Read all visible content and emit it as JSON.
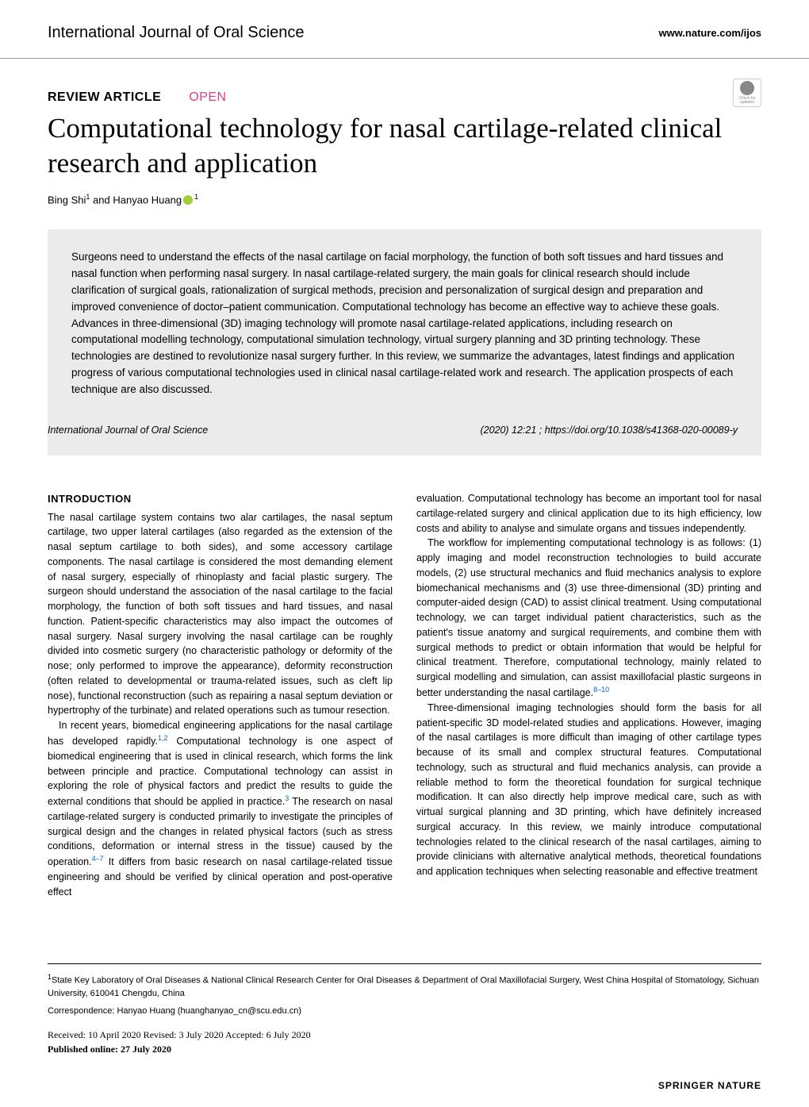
{
  "header": {
    "journal": "International Journal of Oral Science",
    "website": "www.nature.com/ijos"
  },
  "article": {
    "type": "REVIEW ARTICLE",
    "open": "OPEN",
    "title": "Computational technology for nasal cartilage-related clinical research and application",
    "authors": "Bing Shi",
    "authors_rest": " and Hanyao Huang",
    "sup1": "1",
    "sup2": "1"
  },
  "check_updates": {
    "line1": "Check for",
    "line2": "updates"
  },
  "abstract": "Surgeons need to understand the effects of the nasal cartilage on facial morphology, the function of both soft tissues and hard tissues and nasal function when performing nasal surgery. In nasal cartilage-related surgery, the main goals for clinical research should include clarification of surgical goals, rationalization of surgical methods, precision and personalization of surgical design and preparation and improved convenience of doctor–patient communication. Computational technology has become an effective way to achieve these goals. Advances in three-dimensional (3D) imaging technology will promote nasal cartilage-related applications, including research on computational modelling technology, computational simulation technology, virtual surgery planning and 3D printing technology. These technologies are destined to revolutionize nasal surgery further. In this review, we summarize the advantages, latest findings and application progress of various computational technologies used in clinical nasal cartilage-related work and research. The application prospects of each technique are also discussed.",
  "citation": {
    "journal": "International Journal of Oral Science",
    "info": "(2020) 12:21 ; https://doi.org/10.1038/s41368-020-00089-y"
  },
  "sections": {
    "intro_heading": "INTRODUCTION",
    "col1_p1": "The nasal cartilage system contains two alar cartilages, the nasal septum cartilage, two upper lateral cartilages (also regarded as the extension of the nasal septum cartilage to both sides), and some accessory cartilage components. The nasal cartilage is considered the most demanding element of nasal surgery, especially of rhinoplasty and facial plastic surgery. The surgeon should understand the association of the nasal cartilage to the facial morphology, the function of both soft tissues and hard tissues, and nasal function. Patient-specific characteristics may also impact the outcomes of nasal surgery. Nasal surgery involving the nasal cartilage can be roughly divided into cosmetic surgery (no characteristic pathology or deformity of the nose; only performed to improve the appearance), deformity reconstruction (often related to developmental or trauma-related issues, such as cleft lip nose), functional reconstruction (such as repairing a nasal septum deviation or hypertrophy of the turbinate) and related operations such as tumour resection.",
    "col1_p2a": "In recent years, biomedical engineering applications for the nasal cartilage has developed rapidly.",
    "col1_p2_ref1": "1,2",
    "col1_p2b": " Computational technology is one aspect of biomedical engineering that is used in clinical research, which forms the link between principle and practice. Computational technology can assist in exploring the role of physical factors and predict the results to guide the external conditions that should be applied in practice.",
    "col1_p2_ref2": "3",
    "col1_p2c": " The research on nasal cartilage-related surgery is conducted primarily to investigate the principles of surgical design and the changes in related physical factors (such as stress conditions, deformation or internal stress in the tissue) caused by the operation.",
    "col1_p2_ref3": "4–7",
    "col1_p2d": " It differs from basic research on nasal cartilage-related tissue engineering and should be verified by clinical operation and post-operative effect",
    "col2_p1": "evaluation. Computational technology has become an important tool for nasal cartilage-related surgery and clinical application due to its high efficiency, low costs and ability to analyse and simulate organs and tissues independently.",
    "col2_p2a": "The workflow for implementing computational technology is as follows: (1) apply imaging and model reconstruction technologies to build accurate models, (2) use structural mechanics and fluid mechanics analysis to explore biomechanical mechanisms and (3) use three-dimensional (3D) printing and computer-aided design (CAD) to assist clinical treatment. Using computational technology, we can target individual patient characteristics, such as the patient's tissue anatomy and surgical requirements, and combine them with surgical methods to predict or obtain information that would be helpful for clinical treatment. Therefore, computational technology, mainly related to surgical modelling and simulation, can assist maxillofacial plastic surgeons in better understanding the nasal cartilage.",
    "col2_p2_ref1": "8–10",
    "col2_p3": "Three-dimensional imaging technologies should form the basis for all patient-specific 3D model-related studies and applications. However, imaging of the nasal cartilages is more difficult than imaging of other cartilage types because of its small and complex structural features. Computational technology, such as structural and fluid mechanics analysis, can provide a reliable method to form the theoretical foundation for surgical technique modification. It can also directly help improve medical care, such as with virtual surgical planning and 3D printing, which have definitely increased surgical accuracy. In this review, we mainly introduce computational technologies related to the clinical research of the nasal cartilages, aiming to provide clinicians with alternative analytical methods, theoretical foundations and application techniques when selecting reasonable and effective treatment"
  },
  "footer": {
    "affiliation_sup": "1",
    "affiliation": "State Key Laboratory of Oral Diseases & National Clinical Research Center for Oral Diseases & Department of Oral Maxillofacial Surgery, West China Hospital of Stomatology, Sichuan University, 610041 Chengdu, China",
    "correspondence": "Correspondence: Hanyao Huang (huanghanyao_cn@scu.edu.cn)",
    "dates": "Received: 10 April 2020 Revised: 3 July 2020 Accepted: 6 July 2020",
    "published": "Published online: 27 July 2020",
    "publisher": "SPRINGER NATURE"
  }
}
